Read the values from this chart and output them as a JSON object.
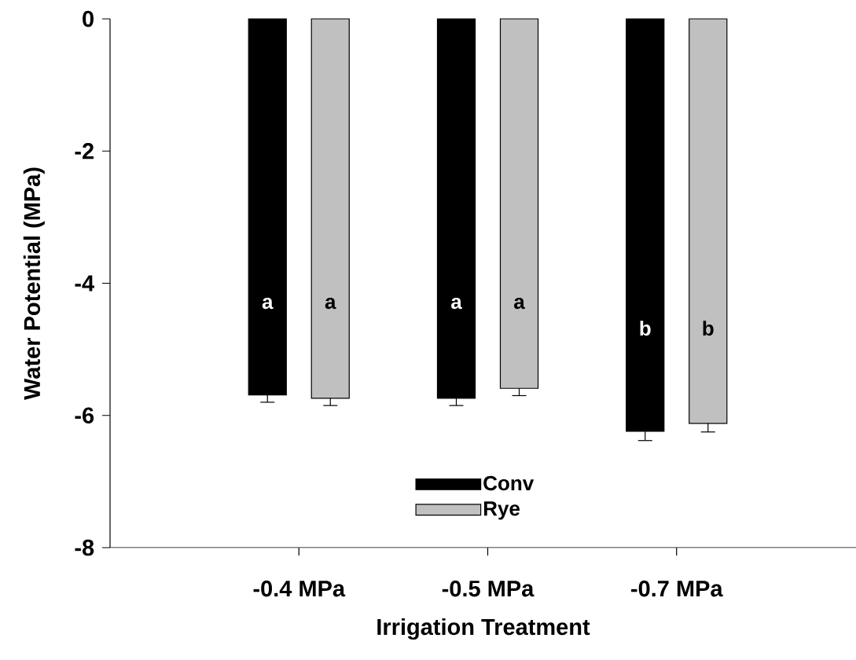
{
  "chart_data": {
    "type": "bar",
    "xlabel": "Irrigation Treatment",
    "ylabel": "Water Potential (MPa)",
    "categories": [
      "-0.4 MPa",
      "-0.5 MPa",
      "-0.7 MPa"
    ],
    "series": [
      {
        "name": "Conv",
        "color": "#000000",
        "values": [
          -5.69,
          -5.74,
          -6.24
        ],
        "errors": [
          [
            -5.8,
            -5.69
          ],
          [
            -5.85,
            -5.74
          ],
          [
            -6.38,
            -6.24
          ]
        ]
      },
      {
        "name": "Rye",
        "color": "#c0c0c0",
        "values": [
          -5.74,
          -5.59,
          -6.12
        ],
        "errors": [
          [
            -5.85,
            -5.74
          ],
          [
            -5.7,
            -5.59
          ],
          [
            -6.25,
            -6.12
          ]
        ]
      }
    ],
    "ylim": [
      -8,
      0
    ],
    "yticks": [
      -8,
      -6,
      -4,
      -2,
      0
    ],
    "grid": false,
    "legend": "bottom",
    "annotations": [
      "a",
      "a",
      "a",
      "a",
      "b",
      "b"
    ]
  }
}
